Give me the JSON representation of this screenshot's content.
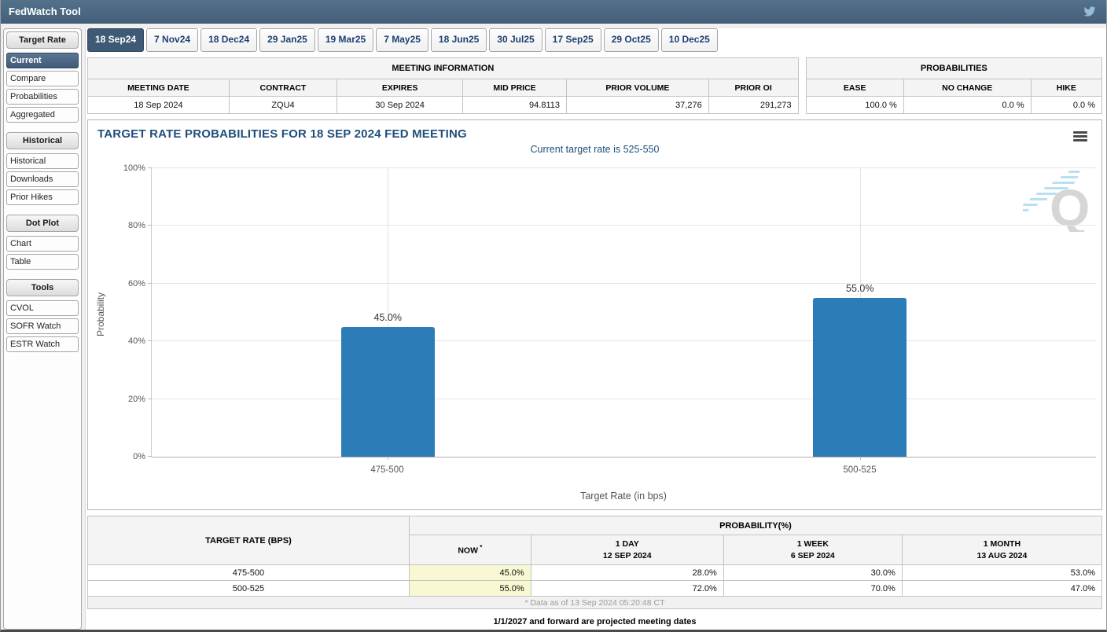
{
  "header": {
    "title": "FedWatch Tool"
  },
  "tabs": [
    {
      "label": "18 Sep24",
      "selected": true
    },
    {
      "label": "7 Nov24"
    },
    {
      "label": "18 Dec24"
    },
    {
      "label": "29 Jan25"
    },
    {
      "label": "19 Mar25"
    },
    {
      "label": "7 May25"
    },
    {
      "label": "18 Jun25"
    },
    {
      "label": "30 Jul25"
    },
    {
      "label": "17 Sep25"
    },
    {
      "label": "29 Oct25"
    },
    {
      "label": "10 Dec25"
    }
  ],
  "sidebar": {
    "sections": [
      {
        "header": "Target Rate",
        "items": [
          {
            "label": "Current",
            "selected": true
          },
          {
            "label": "Compare"
          },
          {
            "label": "Probabilities"
          },
          {
            "label": "Aggregated"
          }
        ]
      },
      {
        "header": "Historical",
        "items": [
          {
            "label": "Historical"
          },
          {
            "label": "Downloads"
          },
          {
            "label": "Prior Hikes"
          }
        ]
      },
      {
        "header": "Dot Plot",
        "items": [
          {
            "label": "Chart"
          },
          {
            "label": "Table"
          }
        ]
      },
      {
        "header": "Tools",
        "items": [
          {
            "label": "CVOL"
          },
          {
            "label": "SOFR Watch"
          },
          {
            "label": "ESTR Watch"
          }
        ]
      }
    ]
  },
  "meeting_info": {
    "title": "MEETING INFORMATION",
    "columns": [
      "MEETING DATE",
      "CONTRACT",
      "EXPIRES",
      "MID PRICE",
      "PRIOR VOLUME",
      "PRIOR OI"
    ],
    "values": [
      "18 Sep 2024",
      "ZQU4",
      "30 Sep 2024",
      "94.8113",
      "37,276",
      "291,273"
    ]
  },
  "probabilities_box": {
    "title": "PROBABILITIES",
    "columns": [
      "EASE",
      "NO CHANGE",
      "HIKE"
    ],
    "values": [
      "100.0 %",
      "0.0 %",
      "0.0 %"
    ]
  },
  "chart_data": {
    "type": "bar",
    "title": "TARGET RATE PROBABILITIES FOR 18 SEP 2024 FED MEETING",
    "subtitle": "Current target rate is 525-550",
    "categories": [
      "475-500",
      "500-525"
    ],
    "values": [
      45.0,
      55.0
    ],
    "value_labels": [
      "45.0%",
      "55.0%"
    ],
    "xlabel": "Target Rate (in bps)",
    "ylabel": "Probability",
    "ylim": [
      0,
      100
    ],
    "yticks": [
      "0%",
      "20%",
      "40%",
      "60%",
      "80%",
      "100%"
    ],
    "bar_color": "#2b7cb7",
    "grid": true,
    "legend": false
  },
  "prob_table": {
    "rate_header": "TARGET RATE (BPS)",
    "group_header": "PROBABILITY(%)",
    "columns": [
      {
        "label": "NOW",
        "asterisk": true,
        "sub": ""
      },
      {
        "label": "1 DAY",
        "sub": "12 SEP 2024"
      },
      {
        "label": "1 WEEK",
        "sub": "6 SEP 2024"
      },
      {
        "label": "1 MONTH",
        "sub": "13 AUG 2024"
      }
    ],
    "rows": [
      {
        "rate": "475-500",
        "now": "45.0%",
        "day": "28.0%",
        "week": "30.0%",
        "month": "53.0%"
      },
      {
        "rate": "500-525",
        "now": "55.0%",
        "day": "72.0%",
        "week": "70.0%",
        "month": "47.0%"
      }
    ],
    "footnote": "* Data as of 13 Sep 2024 05:20:48 CT"
  },
  "footer_note": "1/1/2027 and forward are projected meeting dates"
}
